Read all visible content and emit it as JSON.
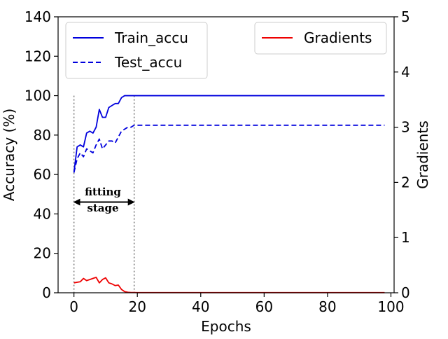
{
  "chart_data": {
    "type": "line",
    "xlabel": "Epochs",
    "ylabel_left": "Accuracy (%)",
    "ylabel_right": "Gradients",
    "xlim": [
      -5,
      101
    ],
    "ylim_left": [
      0,
      140
    ],
    "ylim_right": [
      0,
      5
    ],
    "xticks": [
      0,
      20,
      40,
      60,
      80,
      100
    ],
    "yticks_left": [
      0,
      20,
      40,
      60,
      80,
      100,
      120,
      140
    ],
    "yticks_right": [
      0,
      1,
      2,
      3,
      4,
      5
    ],
    "grid": false,
    "legends": [
      {
        "placement": "top-left",
        "entries": [
          "Train_accu",
          "Test_accu"
        ]
      },
      {
        "placement": "top-right",
        "entries": [
          "Gradients"
        ]
      }
    ],
    "series": [
      {
        "name": "Train_accu",
        "axis": "left",
        "color": "#0000dd",
        "style": "solid",
        "x": [
          0,
          1,
          2,
          3,
          4,
          5,
          6,
          7,
          8,
          9,
          10,
          11,
          12,
          13,
          14,
          15,
          16,
          17,
          18,
          19,
          20,
          30,
          40,
          50,
          60,
          70,
          80,
          90,
          98
        ],
        "y": [
          61,
          74,
          75,
          74,
          81,
          82,
          81,
          84,
          93,
          89,
          89,
          94,
          95,
          96,
          96,
          99,
          100,
          100,
          100,
          100,
          100,
          100,
          100,
          100,
          100,
          100,
          100,
          100,
          100
        ]
      },
      {
        "name": "Test_accu",
        "axis": "left",
        "color": "#0000dd",
        "style": "dashed",
        "x": [
          0,
          1,
          2,
          3,
          4,
          5,
          6,
          7,
          8,
          9,
          10,
          11,
          12,
          13,
          14,
          15,
          16,
          17,
          18,
          19,
          20,
          30,
          40,
          50,
          60,
          70,
          80,
          90,
          98
        ],
        "y": [
          61,
          68,
          71,
          69,
          73,
          72,
          71,
          75,
          78,
          73,
          75,
          77,
          77,
          76,
          79,
          82,
          83,
          84,
          84,
          85,
          85,
          85,
          85,
          85,
          85,
          85,
          85,
          85,
          85
        ]
      },
      {
        "name": "Gradients",
        "axis": "right",
        "color": "#ee0000",
        "style": "solid",
        "x": [
          0,
          1,
          2,
          3,
          4,
          5,
          6,
          7,
          8,
          9,
          10,
          11,
          12,
          13,
          14,
          15,
          16,
          17,
          18,
          19,
          20,
          30,
          40,
          50,
          60,
          70,
          80,
          90,
          98
        ],
        "y": [
          0.18,
          0.19,
          0.2,
          0.26,
          0.22,
          0.24,
          0.26,
          0.28,
          0.18,
          0.24,
          0.27,
          0.18,
          0.16,
          0.13,
          0.14,
          0.06,
          0.02,
          0.01,
          0.005,
          0.005,
          0.003,
          0.003,
          0.003,
          0.003,
          0.003,
          0.003,
          0.003,
          0.003,
          0.003
        ]
      }
    ],
    "annotations": [
      {
        "text_line1": "fitting",
        "text_line2": "stage",
        "x_from": 0,
        "x_to": 19,
        "y": 46,
        "arrow": "double"
      }
    ],
    "vlines": [
      0,
      19
    ]
  }
}
